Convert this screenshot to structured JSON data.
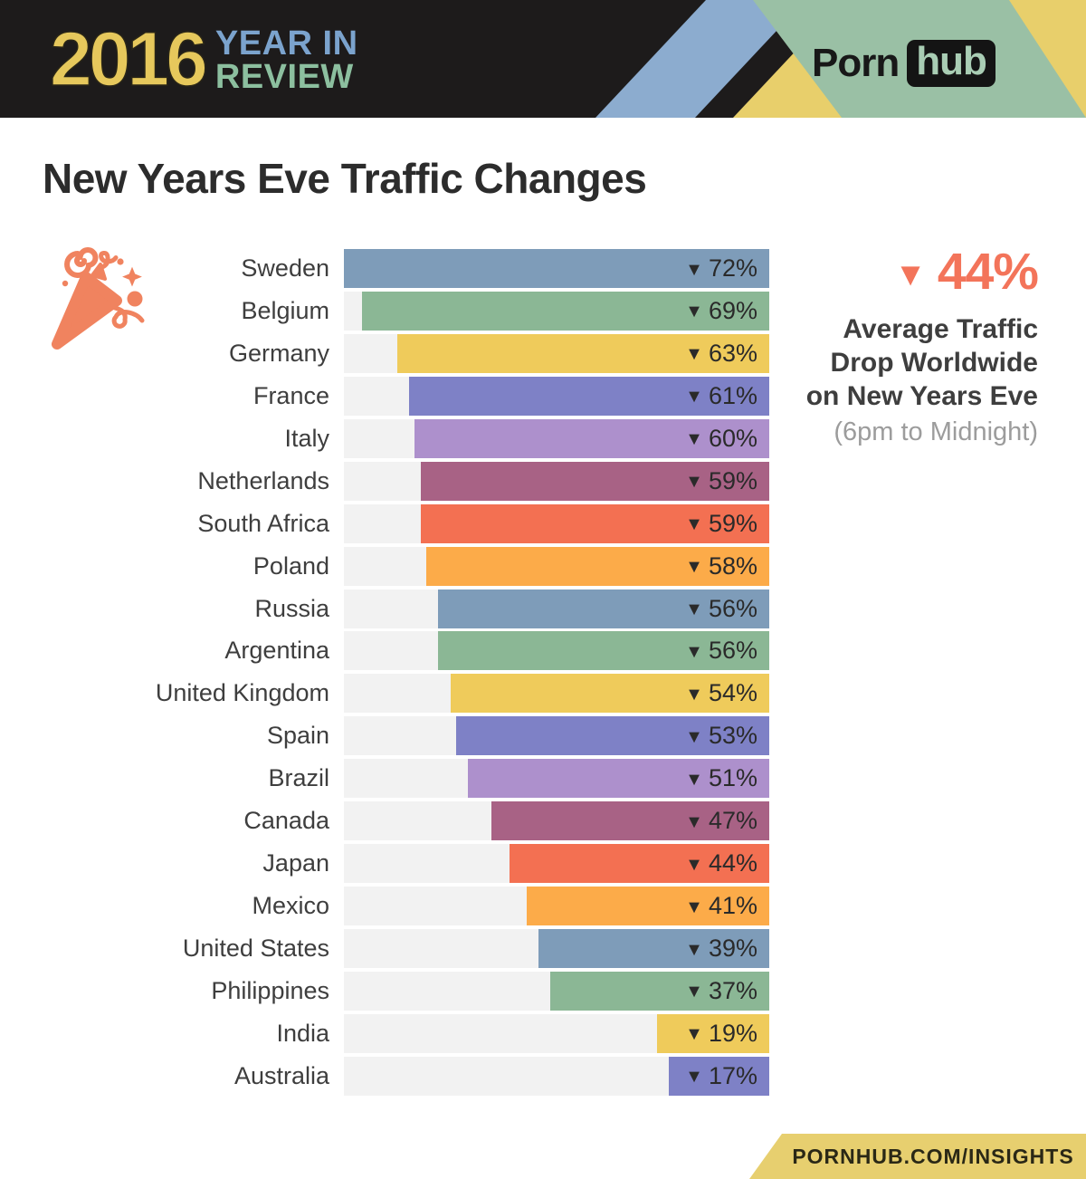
{
  "header": {
    "year": "2016",
    "line1": "YEAR IN",
    "line2": "REVIEW",
    "brand_first": "Porn",
    "brand_second": "hub",
    "colors": {
      "banner_bg": "#1d1b1b",
      "year": "#e6c85c",
      "line1_blue": "#7ba3cd",
      "line2_green": "#8cbf9f",
      "stripe_blue": "#8caccf",
      "stripe_yellow": "#e8cf6b",
      "panel_green": "#9ac0a5"
    }
  },
  "title": "New Years Eve Traffic Changes",
  "chart_data": {
    "type": "bar",
    "orientation": "horizontal",
    "bars_right_aligned": true,
    "unit": "%",
    "direction_marker": "down-triangle",
    "categories": [
      "Sweden",
      "Belgium",
      "Germany",
      "France",
      "Italy",
      "Netherlands",
      "South Africa",
      "Poland",
      "Russia",
      "Argentina",
      "United Kingdom",
      "Spain",
      "Brazil",
      "Canada",
      "Japan",
      "Mexico",
      "United States",
      "Philippines",
      "India",
      "Australia"
    ],
    "values": [
      72,
      69,
      63,
      61,
      60,
      59,
      59,
      58,
      56,
      56,
      54,
      53,
      51,
      47,
      44,
      41,
      39,
      37,
      19,
      17
    ],
    "xlim": [
      0,
      72
    ],
    "bar_colors": [
      "#7e9cb9",
      "#8bb795",
      "#efcb5b",
      "#7e81c6",
      "#ad90cc",
      "#a86285",
      "#f37052",
      "#fcab49"
    ],
    "track_color": "#f2f2f2",
    "value_label_color": "#2a2a2a",
    "grid": false,
    "legend": false
  },
  "summary": {
    "value": "44%",
    "lines": [
      "Average Traffic",
      "Drop Worldwide",
      "on New Years Eve"
    ],
    "note": "(6pm to Midnight)",
    "accent_color": "#f3745a"
  },
  "icons": {
    "down_triangle": "▼",
    "party_popper_color": "#f0835f"
  },
  "footer": {
    "url": "PORNHUB.COM/INSIGHTS",
    "band_color": "#e7cf6f"
  }
}
